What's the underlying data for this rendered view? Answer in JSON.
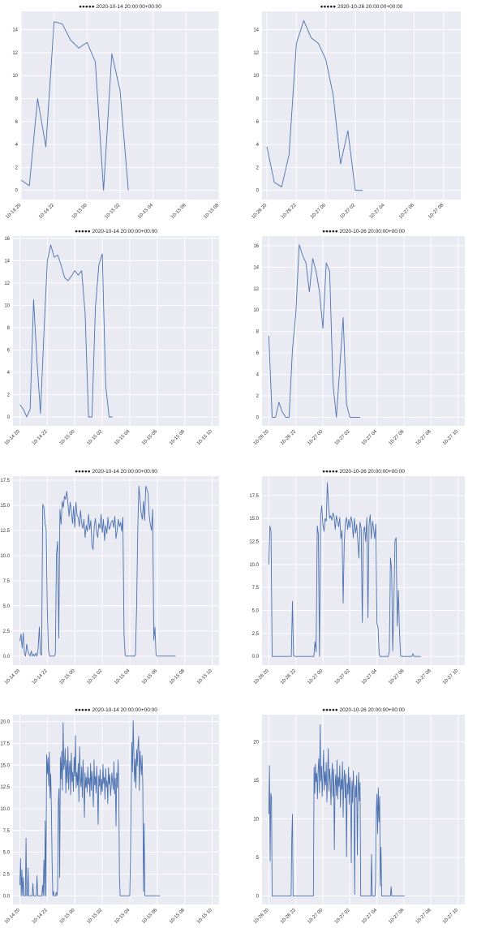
{
  "chart_data": [
    {
      "type": "line",
      "title": "●●●●● 2020-10-14 20:00:00+00:00",
      "x_start": "2020-10-14 20:00",
      "x_step_minutes": 30,
      "x_tick_labels": [
        "10-14 20",
        "10-14 22",
        "10-15 00",
        "10-15 02",
        "10-15 04",
        "10-15 06",
        "10-15 08"
      ],
      "xlim": [
        "2020-10-14 20:00",
        "2020-10-15 08:00"
      ],
      "y_tick_labels": [
        "0",
        "2",
        "4",
        "6",
        "8",
        "10",
        "12",
        "14"
      ],
      "ylim": [
        -0.8,
        15.6
      ],
      "values": [
        0.9,
        0.4,
        8.0,
        3.8,
        14.7,
        14.5,
        13.1,
        12.4,
        12.9,
        11.2,
        0.0,
        11.9,
        8.7,
        0.0
      ],
      "color": "#4c72b0",
      "grid": true
    },
    {
      "type": "line",
      "title": "●●●●● 2020-10-26 20:00:00+00:00",
      "x_start": "2020-10-26 20:00",
      "x_step_minutes": 30,
      "x_tick_labels": [
        "10-26 20",
        "10-26 22",
        "10-27 00",
        "10-27 02",
        "10-27 04",
        "10-27 06",
        "10-27 08"
      ],
      "xlim": [
        "2020-10-26 19:40",
        "2020-10-27 09:10"
      ],
      "y_tick_labels": [
        "0",
        "2",
        "4",
        "6",
        "8",
        "10",
        "12",
        "14"
      ],
      "ylim": [
        -0.8,
        15.6
      ],
      "values": [
        3.8,
        0.7,
        0.3,
        3.1,
        12.8,
        14.8,
        13.3,
        12.8,
        11.4,
        8.3,
        2.3,
        5.2,
        0.0,
        0.0
      ],
      "color": "#4c72b0",
      "grid": true
    },
    {
      "type": "line",
      "title": "●●●●● 2020-10-14 20:00:00+00:00",
      "x_start": "2020-10-14 20:00",
      "x_step_minutes": 15,
      "x_tick_labels": [
        "10-14 20",
        "10-14 22",
        "10-15 00",
        "10-15 02",
        "10-15 04",
        "10-15 06",
        "10-15 08",
        "10-15 10"
      ],
      "xlim": [
        "2020-10-14 19:30",
        "2020-10-15 10:30"
      ],
      "y_tick_labels": [
        "0",
        "2",
        "4",
        "6",
        "8",
        "10",
        "12",
        "14",
        "16"
      ],
      "ylim": [
        -0.8,
        16.2
      ],
      "values": [
        1.1,
        0.7,
        0.0,
        0.7,
        10.5,
        5.0,
        0.3,
        7.4,
        14.0,
        15.4,
        14.3,
        14.5,
        13.6,
        12.5,
        12.2,
        12.6,
        13.1,
        12.7,
        13.1,
        9.3,
        0.0,
        0.0,
        9.8,
        13.6,
        14.6,
        2.8,
        0.0,
        0.0
      ],
      "color": "#4c72b0",
      "grid": true
    },
    {
      "type": "line",
      "title": "●●●●● 2020-10-26 20:00:00+00:00",
      "x_start": "2020-10-26 20:00",
      "x_step_minutes": 15,
      "x_tick_labels": [
        "10-26 20",
        "10-26 22",
        "10-27 00",
        "10-27 02",
        "10-27 04",
        "10-27 06",
        "10-27 08",
        "10-27 10"
      ],
      "xlim": [
        "2020-10-26 19:30",
        "2020-10-27 10:30"
      ],
      "y_tick_labels": [
        "0",
        "2",
        "4",
        "6",
        "8",
        "10",
        "12",
        "14",
        "16"
      ],
      "ylim": [
        -0.8,
        16.9
      ],
      "values": [
        7.6,
        0.0,
        0.0,
        1.4,
        0.5,
        0.0,
        0.0,
        6.3,
        9.7,
        16.1,
        15.1,
        14.4,
        11.7,
        14.8,
        13.6,
        11.7,
        8.3,
        14.4,
        13.6,
        3.1,
        0.0,
        4.6,
        9.3,
        1.2,
        0.0,
        0.0,
        0.0,
        0.0
      ],
      "color": "#4c72b0",
      "grid": true
    },
    {
      "type": "line",
      "title": "●●●●● 2020-10-14 20:00:00+00:00",
      "x_start": "2020-10-14 20:00",
      "x_step_minutes": 5,
      "x_tick_labels": [
        "10-14 20",
        "10-14 22",
        "10-15 00",
        "10-15 02",
        "10-15 04",
        "10-15 06",
        "10-15 08",
        "10-15 10"
      ],
      "xlim": [
        "2020-10-14 19:30",
        "2020-10-15 10:30"
      ],
      "y_tick_labels": [
        "0.0",
        "2.5",
        "5.0",
        "7.5",
        "10.0",
        "12.5",
        "15.0",
        "17.5"
      ],
      "ylim": [
        -0.9,
        17.9
      ],
      "values": [
        1.5,
        2.2,
        0.8,
        2.3,
        0.3,
        0.0,
        1.2,
        0.5,
        0.2,
        0.0,
        0.5,
        0.0,
        0.2,
        0.0,
        0.3,
        0.0,
        0.8,
        2.9,
        0.2,
        0.1,
        15.1,
        14.8,
        13.2,
        12.6,
        4.5,
        0.6,
        0.0,
        0.0,
        0.0,
        0.0,
        0.0,
        0.2,
        10.1,
        11.4,
        1.8,
        14.6,
        13.1,
        15.4,
        14.8,
        15.9,
        15.6,
        16.4,
        15.2,
        13.9,
        15.3,
        14.4,
        13.2,
        14.9,
        12.8,
        15.3,
        14.0,
        13.8,
        12.9,
        14.5,
        13.2,
        12.7,
        13.6,
        11.8,
        13.0,
        12.4,
        14.1,
        12.6,
        13.5,
        11.0,
        10.6,
        12.9,
        13.7,
        12.4,
        11.8,
        13.2,
        12.7,
        14.1,
        12.3,
        13.6,
        11.5,
        13.0,
        12.2,
        13.8,
        12.6,
        12.9,
        13.4,
        13.5,
        12.8,
        13.9,
        11.7,
        12.5,
        13.6,
        12.9,
        13.3,
        12.4,
        13.8,
        2.2,
        0.1,
        0.0,
        0.0,
        0.0,
        0.0,
        0.0,
        0.0,
        0.0,
        0.0,
        0.1,
        4.9,
        12.5,
        16.9,
        15.6,
        14.2,
        13.6,
        15.4,
        13.5,
        16.9,
        16.6,
        16.2,
        14.0,
        13.1,
        12.5,
        14.6,
        1.6,
        2.9,
        0.1,
        0.0,
        0.0,
        0.0,
        0.0,
        0.0,
        0.0,
        0.0,
        0.0,
        0.0,
        0.0,
        0.0,
        0.0,
        0.0,
        0.0,
        0.0,
        0.0,
        0.0
      ],
      "color": "#4c72b0",
      "grid": true
    },
    {
      "type": "line",
      "title": "●●●●● 2020-10-26 20:00:00+00:00",
      "x_start": "2020-10-26 20:00",
      "x_step_minutes": 5,
      "x_tick_labels": [
        "10-26 20",
        "10-26 22",
        "10-27 00",
        "10-27 02",
        "10-27 04",
        "10-27 06",
        "10-27 08",
        "10-27 10"
      ],
      "xlim": [
        "2020-10-26 19:30",
        "2020-10-27 10:30"
      ],
      "y_tick_labels": [
        "0.0",
        "2.5",
        "5.0",
        "7.5",
        "10.0",
        "12.5",
        "15.0",
        "17.5"
      ],
      "ylim": [
        -0.95,
        19.6
      ],
      "values": [
        10.0,
        14.2,
        13.6,
        0.0,
        0.0,
        0.0,
        0.0,
        0.0,
        0.0,
        0.0,
        0.0,
        0.0,
        0.0,
        0.0,
        0.0,
        0.0,
        0.0,
        0.0,
        0.0,
        0.0,
        0.0,
        6.0,
        0.1,
        0.0,
        0.0,
        0.0,
        0.0,
        0.0,
        0.0,
        0.0,
        0.0,
        0.0,
        0.0,
        0.0,
        0.0,
        0.0,
        0.0,
        0.0,
        0.0,
        0.0,
        0.0,
        1.6,
        0.5,
        14.2,
        13.3,
        0.0,
        15.2,
        16.4,
        14.4,
        13.6,
        15.0,
        14.7,
        18.9,
        16.5,
        15.0,
        15.3,
        14.8,
        15.6,
        15.2,
        13.8,
        15.3,
        14.7,
        14.1,
        15.1,
        12.8,
        13.7,
        5.8,
        12.4,
        14.6,
        15.1,
        13.8,
        14.9,
        14.0,
        15.2,
        14.6,
        12.9,
        15.0,
        13.4,
        14.3,
        12.6,
        10.7,
        14.6,
        13.9,
        3.7,
        13.7,
        14.1,
        12.5,
        15.1,
        4.2,
        14.3,
        15.4,
        12.8,
        14.7,
        13.9,
        12.8,
        14.4,
        3.6,
        3.1,
        0.2,
        0.0,
        0.0,
        0.0,
        0.0,
        0.0,
        0.0,
        0.0,
        0.0,
        0.5,
        10.7,
        9.6,
        0.6,
        5.8,
        12.6,
        12.9,
        3.3,
        7.2,
        2.7,
        0.1,
        0.0,
        0.0,
        0.0,
        0.0,
        0.0,
        0.0,
        0.0,
        0.0,
        0.0,
        0.0,
        0.3,
        0.0,
        0.0,
        0.0,
        0.0,
        0.0,
        0.0,
        0.0
      ],
      "color": "#4c72b0",
      "grid": true
    },
    {
      "type": "line",
      "title": "●●●●● 2020-10-14 20:00:00+00:00",
      "x_start": "2020-10-14 20:00",
      "x_step_minutes": 3,
      "x_tick_labels": [
        "10-14 20",
        "10-14 22",
        "10-15 00",
        "10-15 02",
        "10-15 04",
        "10-15 06",
        "10-15 08",
        "10-15 10"
      ],
      "xlim": [
        "2020-10-14 19:30",
        "2020-10-15 10:30"
      ],
      "y_tick_labels": [
        "0.0",
        "2.5",
        "5.0",
        "7.5",
        "10.0",
        "12.5",
        "15.0",
        "17.5",
        "20.0"
      ],
      "ylim": [
        -1.0,
        20.8
      ],
      "values": [
        1.2,
        4.3,
        0.0,
        3.0,
        0.0,
        2.1,
        0.0,
        0.0,
        0.0,
        6.6,
        0.0,
        0.0,
        3.2,
        0.0,
        0.0,
        0.0,
        0.0,
        0.0,
        0.0,
        1.4,
        0.0,
        0.0,
        0.0,
        0.0,
        0.0,
        2.3,
        0.0,
        0.0,
        0.0,
        0.0,
        0.0,
        0.0,
        0.0,
        1.2,
        0.0,
        4.1,
        0.0,
        8.6,
        0.0,
        16.2,
        14.0,
        15.9,
        12.6,
        16.5,
        11.2,
        14.0,
        9.6,
        3.7,
        0.0,
        0.5,
        0.0,
        0.0,
        0.0,
        0.4,
        0.0,
        0.8,
        10.6,
        12.3,
        2.1,
        15.9,
        13.4,
        16.6,
        12.1,
        19.9,
        14.5,
        15.2,
        16.9,
        11.8,
        15.6,
        13.0,
        17.1,
        12.2,
        14.6,
        15.5,
        11.6,
        16.4,
        13.1,
        14.2,
        12.0,
        15.9,
        13.7,
        18.4,
        12.4,
        14.2,
        12.7,
        15.2,
        10.8,
        17.1,
        13.6,
        12.5,
        14.8,
        11.3,
        15.6,
        13.3,
        9.0,
        14.1,
        12.4,
        13.6,
        11.9,
        14.8,
        12.8,
        13.5,
        11.4,
        15.2,
        12.1,
        14.3,
        13.0,
        10.2,
        15.6,
        12.7,
        13.7,
        11.8,
        14.9,
        12.3,
        8.2,
        13.8,
        12.6,
        14.5,
        11.6,
        13.4,
        12.0,
        15.1,
        12.9,
        13.6,
        11.1,
        14.6,
        12.5,
        13.2,
        10.6,
        14.7,
        12.8,
        13.9,
        11.5,
        12.6,
        14.1,
        13.0,
        12.2,
        15.4,
        11.7,
        13.5,
        8.0,
        14.1,
        12.4,
        15.6,
        12.9,
        2.3,
        0.0,
        0.0,
        0.0,
        0.0,
        0.0,
        0.0,
        0.0,
        0.0,
        0.0,
        0.0,
        0.0,
        0.0,
        0.0,
        0.0,
        0.0,
        4.0,
        11.0,
        17.6,
        14.2,
        20.1,
        16.5,
        13.1,
        15.7,
        12.4,
        16.8,
        14.9,
        17.2,
        18.3,
        12.1,
        16.6,
        15.3,
        13.9,
        16.1,
        12.7,
        0.5,
        8.3,
        0.0,
        0.0,
        0.0,
        0.0,
        0.0,
        0.0,
        0.0,
        0.0,
        0.0,
        0.0,
        0.0,
        0.0,
        0.0,
        0.0,
        0.0,
        0.0,
        0.0,
        0.0,
        0.0,
        0.0,
        0.0,
        0.0,
        0.0
      ],
      "color": "#4c72b0",
      "grid": true
    },
    {
      "type": "line",
      "title": "●●●●● 2020-10-26 20:00:00+00:00",
      "x_start": "2020-10-26 20:00",
      "x_step_minutes": 3,
      "x_tick_labels": [
        "10-26 20",
        "10-26 22",
        "10-27 00",
        "10-27 02",
        "10-27 04",
        "10-27 06",
        "10-27 08",
        "10-27 10"
      ],
      "xlim": [
        "2020-10-26 19:30",
        "2020-10-27 10:30"
      ],
      "y_tick_labels": [
        "0",
        "5",
        "10",
        "15",
        "20"
      ],
      "ylim": [
        -1.1,
        23.5
      ],
      "values": [
        10.6,
        16.9,
        4.5,
        13.3,
        12.8,
        0.0,
        0.0,
        0.0,
        0.0,
        0.0,
        0.0,
        0.0,
        0.0,
        0.0,
        0.0,
        0.0,
        0.0,
        0.0,
        0.0,
        0.0,
        0.0,
        0.0,
        0.0,
        0.0,
        0.0,
        0.0,
        0.0,
        0.0,
        0.0,
        0.0,
        0.0,
        0.0,
        0.0,
        0.0,
        7.3,
        10.6,
        0.0,
        0.0,
        0.0,
        0.0,
        0.0,
        0.0,
        0.0,
        0.0,
        0.0,
        0.0,
        0.0,
        0.0,
        0.0,
        0.0,
        0.0,
        0.0,
        0.0,
        0.0,
        0.0,
        0.0,
        0.0,
        0.0,
        0.0,
        0.0,
        0.0,
        0.0,
        0.0,
        0.0,
        0.0,
        0.0,
        0.0,
        16.7,
        13.3,
        17.1,
        14.8,
        15.9,
        12.6,
        16.3,
        17.8,
        13.4,
        22.2,
        14.9,
        16.8,
        12.9,
        15.6,
        18.9,
        13.7,
        16.1,
        14.4,
        17.3,
        12.2,
        15.8,
        19.1,
        13.6,
        16.5,
        14.9,
        11.8,
        15.3,
        17.2,
        12.9,
        16.4,
        6.0,
        14.1,
        15.7,
        13.0,
        17.6,
        12.6,
        15.4,
        14.2,
        16.9,
        11.5,
        15.1,
        13.8,
        17.4,
        10.2,
        14.9,
        16.3,
        12.7,
        15.8,
        5.1,
        14.6,
        13.2,
        16.7,
        11.9,
        15.4,
        13.6,
        4.3,
        14.9,
        12.1,
        16.2,
        13.5,
        0.2,
        14.3,
        12.8,
        15.6,
        5.3,
        13.4,
        16.0,
        12.3,
        14.7,
        0.0,
        0.0,
        0.0,
        0.0,
        0.0,
        0.0,
        0.0,
        0.0,
        0.0,
        0.0,
        0.0,
        0.0,
        0.0,
        0.0,
        0.0,
        0.0,
        5.4,
        0.0,
        0.0,
        0.0,
        0.0,
        0.0,
        1.7,
        10.8,
        13.2,
        8.1,
        14.0,
        9.6,
        12.9,
        1.3,
        6.3,
        0.0,
        0.0,
        0.0,
        0.0,
        0.0,
        0.0,
        0.0,
        0.0,
        0.0,
        0.0,
        0.0,
        0.0,
        0.0,
        0.0,
        1.2,
        0.0,
        0.0,
        0.0,
        0.0,
        0.0,
        0.0,
        0.0,
        0.0,
        0.0,
        0.0,
        0.0,
        0.0,
        0.0,
        0.0,
        0.0,
        0.0,
        0.0,
        0.0,
        0.0,
        0.0
      ],
      "color": "#4c72b0",
      "grid": true
    }
  ]
}
